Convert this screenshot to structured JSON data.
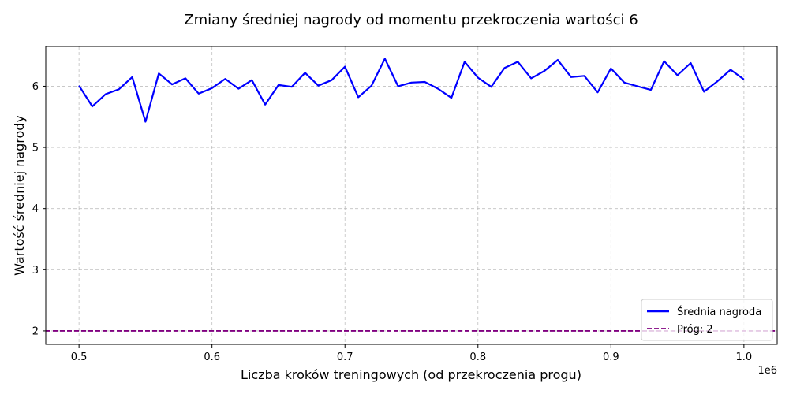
{
  "chart_data": {
    "type": "line",
    "title": "Zmiany średniej nagrody od momentu przekroczenia wartości 6",
    "xlabel": "Liczba kroków treningowych (od przekroczenia progu)",
    "ylabel": "Wartość średniej nagrody",
    "x_offset_label": "1e6",
    "xlim": [
      475000,
      1025000
    ],
    "ylim": [
      1.78,
      6.65
    ],
    "xticks": [
      500000,
      600000,
      700000,
      800000,
      900000,
      1000000
    ],
    "xtick_labels": [
      "0.5",
      "0.6",
      "0.7",
      "0.8",
      "0.9",
      "1.0"
    ],
    "yticks": [
      2,
      3,
      4,
      5,
      6
    ],
    "ytick_labels": [
      "2",
      "3",
      "4",
      "5",
      "6"
    ],
    "grid": true,
    "legend_position": "lower-right",
    "series": [
      {
        "name": "Średnia nagroda",
        "color": "#0000ff",
        "style": "solid",
        "x": [
          500000,
          510000,
          520000,
          530000,
          540000,
          550000,
          560000,
          570000,
          580000,
          590000,
          600000,
          610000,
          620000,
          630000,
          640000,
          650000,
          660000,
          670000,
          680000,
          690000,
          700000,
          710000,
          720000,
          730000,
          740000,
          750000,
          760000,
          770000,
          780000,
          790000,
          800000,
          810000,
          820000,
          830000,
          840000,
          850000,
          860000,
          870000,
          880000,
          890000,
          900000,
          910000,
          920000,
          930000,
          940000,
          950000,
          960000,
          970000,
          980000,
          990000,
          1000000
        ],
        "values": [
          6.01,
          5.67,
          5.87,
          5.95,
          6.15,
          5.42,
          6.21,
          6.03,
          6.13,
          5.88,
          5.97,
          6.12,
          5.96,
          6.1,
          5.7,
          6.02,
          5.99,
          6.22,
          6.01,
          6.1,
          6.32,
          5.82,
          6.01,
          6.45,
          6.0,
          6.06,
          6.07,
          5.96,
          5.81,
          6.4,
          6.14,
          5.99,
          6.3,
          6.4,
          6.13,
          6.25,
          6.43,
          6.15,
          6.17,
          5.9,
          6.29,
          6.06,
          6.0,
          5.94,
          6.41,
          6.18,
          6.38,
          5.91,
          6.08,
          6.27,
          6.11
        ]
      },
      {
        "name": "Próg: 2",
        "color": "#800080",
        "style": "dashed",
        "hline": 2
      }
    ]
  }
}
